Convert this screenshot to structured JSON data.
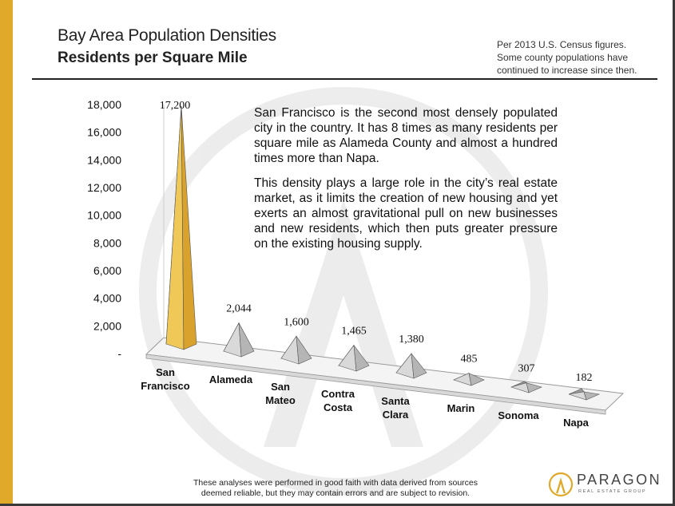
{
  "header": {
    "title": "Bay Area Population Densities",
    "subtitle": "Residents per Square Mile",
    "note_lines": [
      "Per 2013 U.S. Census figures.",
      "Some county populations have",
      "continued to increase since then."
    ]
  },
  "description": {
    "paragraph1": "San Francisco is the second most densely populated city in the country. It has 8 times as many residents per square mile as Alameda County and almost a hundred times more than Napa.",
    "paragraph2": "This density plays a large role in the city’s real estate market, as it limits the creation of new housing and yet exerts an almost gravitational pull on new businesses and new residents, which then puts greater pressure on the existing housing supply."
  },
  "chart_data": {
    "type": "bar",
    "categories": [
      [
        "San",
        "Francisco"
      ],
      [
        "Alameda"
      ],
      [
        "San",
        "Mateo"
      ],
      [
        "Contra",
        "Costa"
      ],
      [
        "Santa",
        "Clara"
      ],
      [
        "Marin"
      ],
      [
        "Sonoma"
      ],
      [
        "Napa"
      ]
    ],
    "values": [
      17200,
      2044,
      1600,
      1465,
      1380,
      485,
      307,
      182
    ],
    "value_labels": [
      "17,200",
      "2,044",
      "1,600",
      "1,465",
      "1,380",
      "485",
      "307",
      "182"
    ],
    "y_ticks": [
      0,
      2000,
      4000,
      6000,
      8000,
      10000,
      12000,
      14000,
      16000,
      18000
    ],
    "y_tick_labels": [
      "-",
      "2,000",
      "4,000",
      "6,000",
      "8,000",
      "10,000",
      "12,000",
      "14,000",
      "16,000",
      "18,000"
    ],
    "ylim": [
      0,
      18000
    ],
    "highlight_color": "#e3b03a",
    "bar_color": "#b5b5b5",
    "shape": "3d-pyramid"
  },
  "footer": {
    "disclaimer_lines": [
      "These analyses were performed in good faith with data derived from sources",
      "deemed reliable, but they may contain errors and are subject to revision."
    ]
  },
  "logo": {
    "name": "PARAGON",
    "tagline": "REAL ESTATE GROUP"
  }
}
